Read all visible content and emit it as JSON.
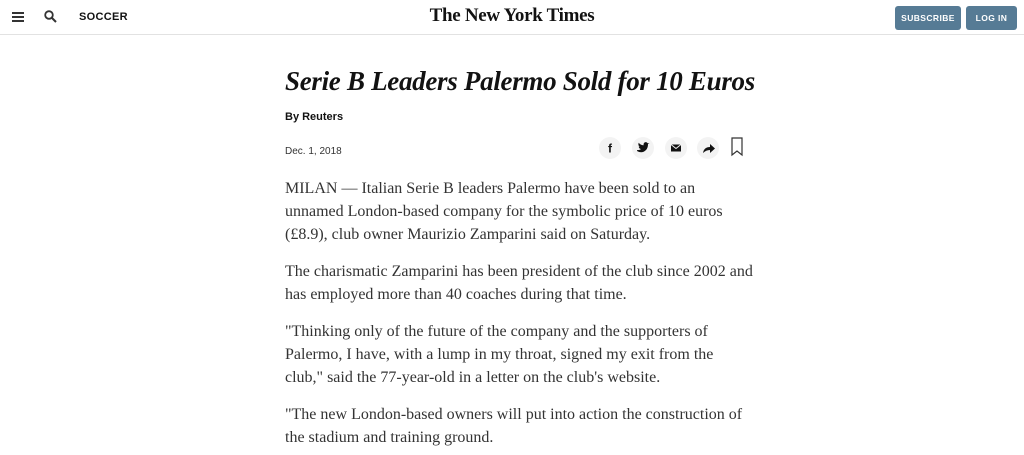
{
  "header": {
    "section": "SOCCER",
    "logo": "The New York Times",
    "subscribe": "SUBSCRIBE",
    "login": "LOG IN"
  },
  "article": {
    "title": "Serie B Leaders Palermo Sold for 10 Euros",
    "byline": "By Reuters",
    "date": "Dec. 1, 2018",
    "paragraphs": [
      "MILAN — Italian Serie B leaders Palermo have been sold to an unnamed London-based company for the symbolic price of 10 euros (£8.9), club owner Maurizio Zamparini said on Saturday.",
      "The charismatic Zamparini has been president of the club since 2002 and has employed more than 40 coaches during that time.",
      "\"Thinking only of the future of the company and the supporters of Palermo, I have, with a lump in my throat, signed my exit from the club,\" said the 77-year-old in a letter on the club's website.",
      "\"The new London-based owners will put into action the construction of the stadium and training ground."
    ]
  }
}
